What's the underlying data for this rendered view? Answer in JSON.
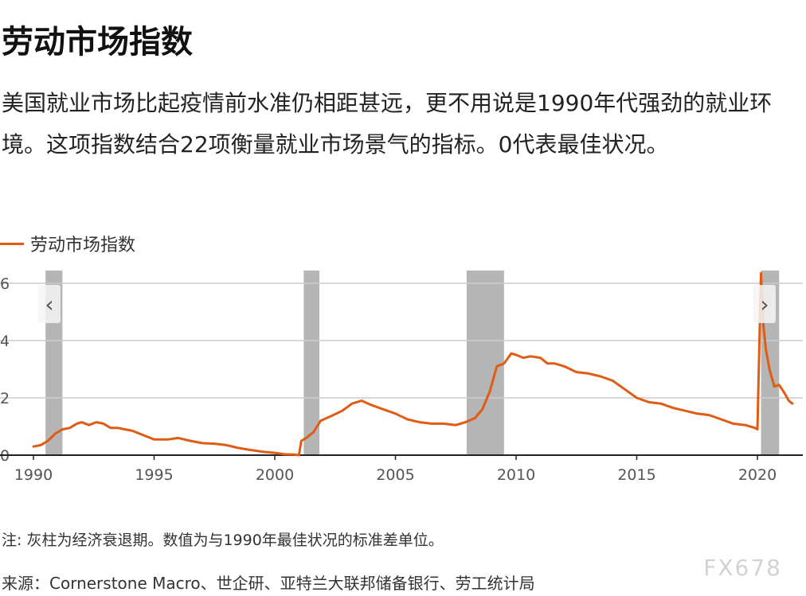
{
  "title": "劳动市场指数",
  "subtitle": "美国就业市场比起疫情前水准仍相距甚远，更不用说是1990年代强劲的就业环境。这项指数结合22项衡量就业市场景气的指标。0代表最佳状况。",
  "note": "注: 灰柱为经济衰退期。数值为与1990年最佳状况的标准差单位。",
  "source": "来源：Cornerstone Macro、世企研、亚特兰大联邦储备银行、劳工统计局",
  "watermark": "FX678",
  "nav": {
    "prev_icon": "chevron-left-icon",
    "next_icon": "chevron-right-icon",
    "prev_glyph": "‹",
    "next_glyph": "›"
  },
  "colors": {
    "line": "#e05c14",
    "recession": "#b5b5b5",
    "grid": "#cccccc",
    "axis": "#222222"
  },
  "chart_data": {
    "type": "line",
    "title": "",
    "xlabel": "",
    "ylabel": "",
    "xlim": [
      1990,
      2021.6
    ],
    "ylim": [
      0,
      6.4
    ],
    "x_ticks": [
      1990,
      1995,
      2000,
      2005,
      2010,
      2015,
      2020
    ],
    "x_tick_labels": [
      "1990",
      "1995",
      "2000",
      "2005",
      "2010",
      "2015",
      "2020"
    ],
    "y_ticks": [
      0,
      2,
      4,
      6
    ],
    "y_tick_labels": [
      "0",
      "2",
      "4",
      "6"
    ],
    "grid": true,
    "legend": "top-left",
    "recessions": [
      {
        "start": 1990.5,
        "end": 1991.2
      },
      {
        "start": 2001.2,
        "end": 2001.85
      },
      {
        "start": 2007.95,
        "end": 2009.5
      },
      {
        "start": 2020.15,
        "end": 2020.9
      }
    ],
    "series": [
      {
        "name": "劳动市场指数",
        "x": [
          1990.0,
          1990.3,
          1990.6,
          1990.9,
          1991.2,
          1991.5,
          1991.8,
          1992.0,
          1992.3,
          1992.6,
          1992.9,
          1993.2,
          1993.5,
          1993.8,
          1994.1,
          1994.4,
          1994.7,
          1995.0,
          1995.3,
          1995.6,
          1996.0,
          1996.5,
          1997.0,
          1997.5,
          1998.0,
          1998.5,
          1999.0,
          1999.5,
          2000.0,
          2000.4,
          2000.8,
          2001.0,
          2001.1,
          2001.3,
          2001.6,
          2001.9,
          2002.3,
          2002.8,
          2003.2,
          2003.6,
          2004.0,
          2004.5,
          2005.0,
          2005.5,
          2006.0,
          2006.5,
          2007.0,
          2007.5,
          2007.9,
          2008.3,
          2008.6,
          2008.9,
          2009.2,
          2009.5,
          2009.8,
          2010.0,
          2010.3,
          2010.6,
          2011.0,
          2011.3,
          2011.6,
          2012.0,
          2012.5,
          2013.0,
          2013.5,
          2014.0,
          2014.5,
          2015.0,
          2015.5,
          2016.0,
          2016.5,
          2017.0,
          2017.5,
          2018.0,
          2018.5,
          2019.0,
          2019.5,
          2019.9,
          2020.0,
          2020.15,
          2020.25,
          2020.35,
          2020.5,
          2020.7,
          2020.9,
          2021.1,
          2021.3,
          2021.45
        ],
        "values": [
          0.3,
          0.35,
          0.5,
          0.75,
          0.9,
          0.95,
          1.1,
          1.15,
          1.05,
          1.15,
          1.1,
          0.95,
          0.95,
          0.9,
          0.85,
          0.75,
          0.65,
          0.55,
          0.55,
          0.55,
          0.6,
          0.5,
          0.42,
          0.4,
          0.35,
          0.25,
          0.18,
          0.12,
          0.08,
          0.03,
          0.02,
          0.0,
          0.5,
          0.6,
          0.8,
          1.2,
          1.35,
          1.55,
          1.8,
          1.9,
          1.75,
          1.6,
          1.45,
          1.25,
          1.15,
          1.1,
          1.1,
          1.05,
          1.15,
          1.3,
          1.6,
          2.2,
          3.1,
          3.2,
          3.55,
          3.5,
          3.4,
          3.45,
          3.4,
          3.2,
          3.2,
          3.1,
          2.9,
          2.85,
          2.75,
          2.6,
          2.3,
          2.0,
          1.85,
          1.8,
          1.65,
          1.55,
          1.45,
          1.4,
          1.25,
          1.1,
          1.05,
          0.95,
          0.9,
          6.35,
          4.5,
          3.7,
          3.0,
          2.4,
          2.45,
          2.2,
          1.9,
          1.8
        ]
      }
    ]
  }
}
